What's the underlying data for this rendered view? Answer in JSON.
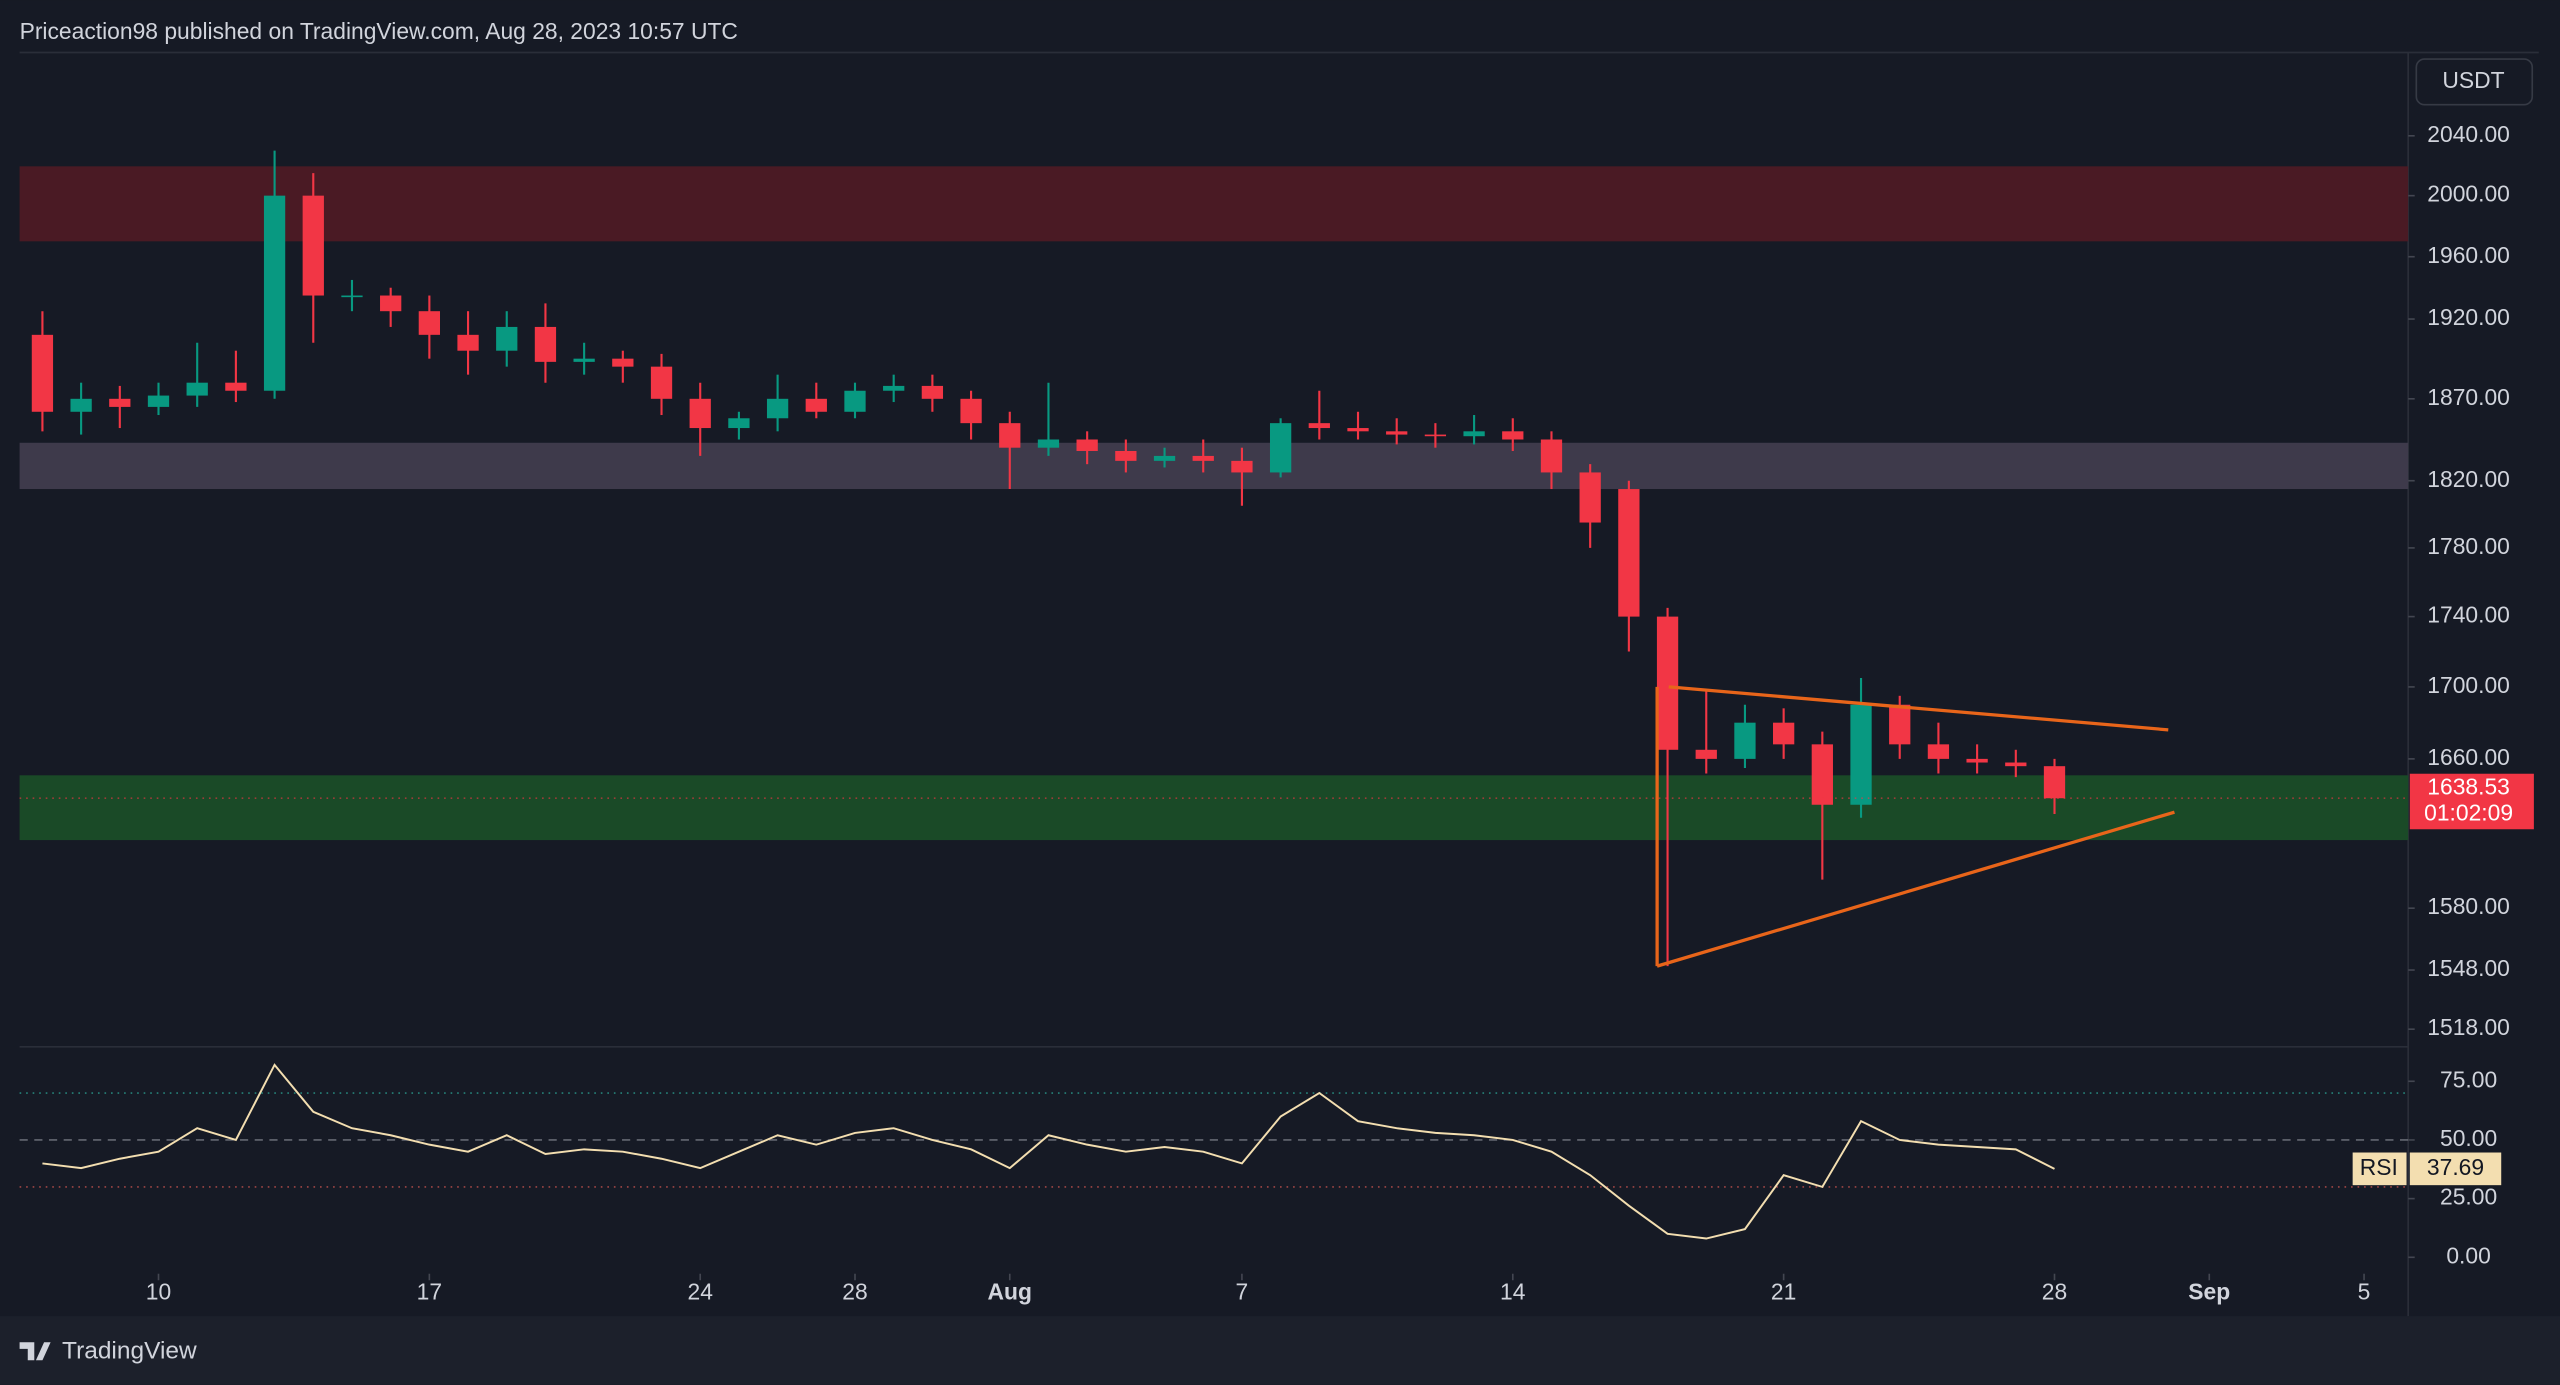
{
  "header": {
    "text": "Priceaction98 published on TradingView.com, Aug 28, 2023 10:57 UTC"
  },
  "footer": {
    "brand": "TradingView"
  },
  "chart_data": [
    {
      "type": "candlestick",
      "currency": "USDT",
      "log_scale": true,
      "up_color": "#089981",
      "down_color": "#f23645",
      "xlim": [
        6.41,
        68.14
      ],
      "xticks": [
        {
          "value": 10,
          "label": "10"
        },
        {
          "value": 17,
          "label": "17"
        },
        {
          "value": 24,
          "label": "24"
        },
        {
          "value": 28,
          "label": "28"
        },
        {
          "value": 32,
          "label": "Aug"
        },
        {
          "value": 38,
          "label": "7"
        },
        {
          "value": 45,
          "label": "14"
        },
        {
          "value": 52,
          "label": "21"
        },
        {
          "value": 59,
          "label": "28"
        },
        {
          "value": 63,
          "label": "Sep"
        },
        {
          "value": 67,
          "label": "5"
        }
      ],
      "ylim": [
        1510,
        2097
      ],
      "yticks": [
        {
          "value": 2040,
          "label": "2040.00"
        },
        {
          "value": 2000,
          "label": "2000.00"
        },
        {
          "value": 1960,
          "label": "1960.00"
        },
        {
          "value": 1920,
          "label": "1920.00"
        },
        {
          "value": 1870,
          "label": "1870.00"
        },
        {
          "value": 1820,
          "label": "1820.00"
        },
        {
          "value": 1780,
          "label": "1780.00"
        },
        {
          "value": 1740,
          "label": "1740.00"
        },
        {
          "value": 1700,
          "label": "1700.00"
        },
        {
          "value": 1660,
          "label": "1660.00"
        },
        {
          "value": 1580,
          "label": "1580.00"
        },
        {
          "value": 1548,
          "label": "1548.00"
        },
        {
          "value": 1518,
          "label": "1518.00"
        }
      ],
      "x": [
        7,
        8,
        9,
        10,
        11,
        12,
        13,
        14,
        15,
        16,
        17,
        18,
        19,
        20,
        21,
        22,
        23,
        24,
        25,
        26,
        27,
        28,
        29,
        30,
        31,
        32,
        33,
        34,
        35,
        36,
        37,
        38,
        39,
        40,
        41,
        42,
        43,
        44,
        45,
        46,
        47,
        48,
        49,
        50,
        51,
        52,
        53,
        54,
        55,
        56,
        57,
        58,
        59
      ],
      "candles": [
        [
          1910,
          1925,
          1850,
          1862
        ],
        [
          1862,
          1880,
          1848,
          1870
        ],
        [
          1870,
          1878,
          1852,
          1865
        ],
        [
          1865,
          1880,
          1860,
          1872
        ],
        [
          1872,
          1905,
          1865,
          1880
        ],
        [
          1880,
          1900,
          1868,
          1875
        ],
        [
          1875,
          2030,
          1870,
          2000
        ],
        [
          2000,
          2015,
          1905,
          1935
        ],
        [
          1935,
          1945,
          1925,
          1935
        ],
        [
          1935,
          1940,
          1915,
          1925
        ],
        [
          1925,
          1935,
          1895,
          1910
        ],
        [
          1910,
          1925,
          1885,
          1900
        ],
        [
          1900,
          1925,
          1890,
          1915
        ],
        [
          1915,
          1930,
          1880,
          1893
        ],
        [
          1893,
          1905,
          1885,
          1895
        ],
        [
          1895,
          1900,
          1880,
          1890
        ],
        [
          1890,
          1898,
          1860,
          1870
        ],
        [
          1870,
          1880,
          1835,
          1852
        ],
        [
          1852,
          1862,
          1845,
          1858
        ],
        [
          1858,
          1885,
          1850,
          1870
        ],
        [
          1870,
          1880,
          1858,
          1862
        ],
        [
          1862,
          1880,
          1858,
          1875
        ],
        [
          1875,
          1885,
          1868,
          1878
        ],
        [
          1878,
          1885,
          1862,
          1870
        ],
        [
          1870,
          1875,
          1845,
          1855
        ],
        [
          1855,
          1862,
          1815,
          1840
        ],
        [
          1840,
          1880,
          1835,
          1845
        ],
        [
          1845,
          1850,
          1830,
          1838
        ],
        [
          1838,
          1845,
          1825,
          1832
        ],
        [
          1832,
          1840,
          1828,
          1835
        ],
        [
          1835,
          1845,
          1825,
          1832
        ],
        [
          1832,
          1840,
          1805,
          1825
        ],
        [
          1825,
          1858,
          1822,
          1855
        ],
        [
          1855,
          1875,
          1845,
          1852
        ],
        [
          1852,
          1862,
          1845,
          1850
        ],
        [
          1850,
          1858,
          1842,
          1848
        ],
        [
          1848,
          1855,
          1840,
          1847
        ],
        [
          1847,
          1860,
          1842,
          1850
        ],
        [
          1850,
          1858,
          1838,
          1845
        ],
        [
          1845,
          1850,
          1815,
          1825
        ],
        [
          1825,
          1830,
          1780,
          1795
        ],
        [
          1815,
          1820,
          1720,
          1740
        ],
        [
          1740,
          1745,
          1550,
          1665
        ],
        [
          1665,
          1698,
          1652,
          1660
        ],
        [
          1660,
          1690,
          1655,
          1680
        ],
        [
          1680,
          1688,
          1660,
          1668
        ],
        [
          1668,
          1675,
          1595,
          1635
        ],
        [
          1635,
          1705,
          1628,
          1690
        ],
        [
          1690,
          1695,
          1660,
          1668
        ],
        [
          1668,
          1680,
          1652,
          1660
        ],
        [
          1660,
          1668,
          1652,
          1658
        ],
        [
          1658,
          1665,
          1650,
          1656
        ],
        [
          1656,
          1660,
          1630,
          1638.53
        ]
      ],
      "zones": [
        {
          "lo": 1970,
          "hi": 2019.5,
          "color": "#4a1a24"
        },
        {
          "lo": 1815,
          "hi": 1843,
          "color": "#3e3a4b"
        },
        {
          "lo": 1616,
          "hi": 1651,
          "color": "#1a4a27"
        }
      ],
      "trend_lines": [
        {
          "x": [
            49.03,
            61.94
          ],
          "y": [
            1700,
            1676
          ],
          "color": "#e8651a"
        },
        {
          "x": [
            48.73,
            62.1
          ],
          "y": [
            1550,
            1631
          ],
          "color": "#e8651a"
        },
        {
          "x": [
            48.73,
            48.73
          ],
          "y": [
            1700,
            1550
          ],
          "color": "#e8651a"
        }
      ],
      "countdown": "01:02:09"
    },
    {
      "type": "line",
      "name": "RSI",
      "color": "#f3deb0",
      "ylim": [
        -7,
        89
      ],
      "yticks": [
        {
          "value": 75,
          "label": "75.00"
        },
        {
          "value": 50,
          "label": "50.00"
        },
        {
          "value": 25,
          "label": "25.00"
        },
        {
          "value": 0,
          "label": "0.00"
        }
      ],
      "levels": [
        70,
        50,
        30
      ],
      "x": [
        7,
        8,
        9,
        10,
        11,
        12,
        13,
        14,
        15,
        16,
        17,
        18,
        19,
        20,
        21,
        22,
        23,
        24,
        25,
        26,
        27,
        28,
        29,
        30,
        31,
        32,
        33,
        34,
        35,
        36,
        37,
        38,
        39,
        40,
        41,
        42,
        43,
        44,
        45,
        46,
        47,
        48,
        49,
        50,
        51,
        52,
        53,
        54,
        55,
        56,
        57,
        58,
        59
      ],
      "values": [
        40,
        38,
        42,
        45,
        55,
        50,
        82,
        62,
        55,
        52,
        48,
        45,
        52,
        44,
        46,
        45,
        42,
        38,
        45,
        52,
        48,
        53,
        55,
        50,
        46,
        38,
        52,
        48,
        45,
        47,
        45,
        40,
        60,
        70,
        58,
        55,
        53,
        52,
        50,
        45,
        35,
        22,
        10,
        8,
        12,
        35,
        30,
        58,
        50,
        48,
        47,
        46,
        37.69
      ]
    }
  ]
}
